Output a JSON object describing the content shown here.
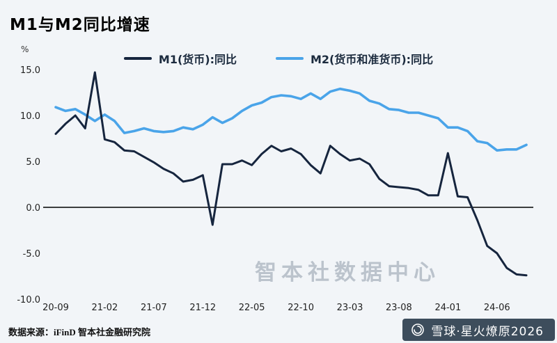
{
  "watermark": "智本社数据中心",
  "source": "数据来源：iFinD 智本社金融研究院",
  "badge": {
    "text": "雪球·星火燎原2026"
  },
  "colors": {
    "background": "#f2f5f8",
    "m1_line": "#16253e",
    "m2_line": "#4aa4e9",
    "zero_line": "#000000",
    "tick_text": "#222222",
    "watermark": "#96a1af",
    "badge_bg": "#3d4d5c"
  },
  "chart_data": {
    "type": "line",
    "title": "M1与M2同比增速",
    "y_unit": "%",
    "grid": false,
    "legend_position": "top",
    "ylim": [
      -10,
      15
    ],
    "y_ticks": [
      15.0,
      10.0,
      5.0,
      0.0,
      -5.0,
      -10.0
    ],
    "x": [
      "20-09",
      "20-10",
      "20-11",
      "20-12",
      "21-01",
      "21-02",
      "21-03",
      "21-04",
      "21-05",
      "21-06",
      "21-07",
      "21-08",
      "21-09",
      "21-10",
      "21-11",
      "21-12",
      "22-01",
      "22-02",
      "22-03",
      "22-04",
      "22-05",
      "22-06",
      "22-07",
      "22-08",
      "22-09",
      "22-10",
      "22-11",
      "22-12",
      "23-01",
      "23-02",
      "23-03",
      "23-04",
      "23-05",
      "23-06",
      "23-07",
      "23-08",
      "23-09",
      "23-10",
      "23-11",
      "23-12",
      "24-01",
      "24-02",
      "24-03",
      "24-04",
      "24-05",
      "24-06",
      "24-07",
      "24-08",
      "24-09"
    ],
    "x_tick_indices": [
      0,
      5,
      10,
      15,
      20,
      25,
      30,
      35,
      40,
      45
    ],
    "x_tick_labels": [
      "20-09",
      "21-02",
      "21-07",
      "21-12",
      "22-05",
      "22-10",
      "23-03",
      "23-08",
      "24-01",
      "24-06"
    ],
    "series": [
      {
        "id": "m1",
        "name": "M1(货币):同比",
        "color": "#16253e",
        "values": [
          8.0,
          9.1,
          10.0,
          8.6,
          14.7,
          7.4,
          7.1,
          6.2,
          6.1,
          5.5,
          4.9,
          4.2,
          3.7,
          2.8,
          3.0,
          3.5,
          -1.9,
          4.7,
          4.7,
          5.1,
          4.6,
          5.8,
          6.7,
          6.1,
          6.4,
          5.8,
          4.6,
          3.7,
          6.7,
          5.8,
          5.1,
          5.3,
          4.7,
          3.1,
          2.3,
          2.2,
          2.1,
          1.9,
          1.3,
          1.3,
          5.9,
          1.2,
          1.1,
          -1.4,
          -4.2,
          -5.0,
          -6.6,
          -7.3,
          -7.4
        ]
      },
      {
        "id": "m2",
        "name": "M2(货币和准货币):同比",
        "color": "#4aa4e9",
        "values": [
          10.9,
          10.5,
          10.7,
          10.1,
          9.4,
          10.1,
          9.4,
          8.1,
          8.3,
          8.6,
          8.3,
          8.2,
          8.3,
          8.7,
          8.5,
          9.0,
          9.8,
          9.2,
          9.7,
          10.5,
          11.1,
          11.4,
          12.0,
          12.2,
          12.1,
          11.8,
          12.4,
          11.8,
          12.6,
          12.9,
          12.7,
          12.4,
          11.6,
          11.3,
          10.7,
          10.6,
          10.3,
          10.3,
          10.0,
          9.7,
          8.7,
          8.7,
          8.3,
          7.2,
          7.0,
          6.2,
          6.3,
          6.3,
          6.8
        ]
      }
    ]
  }
}
